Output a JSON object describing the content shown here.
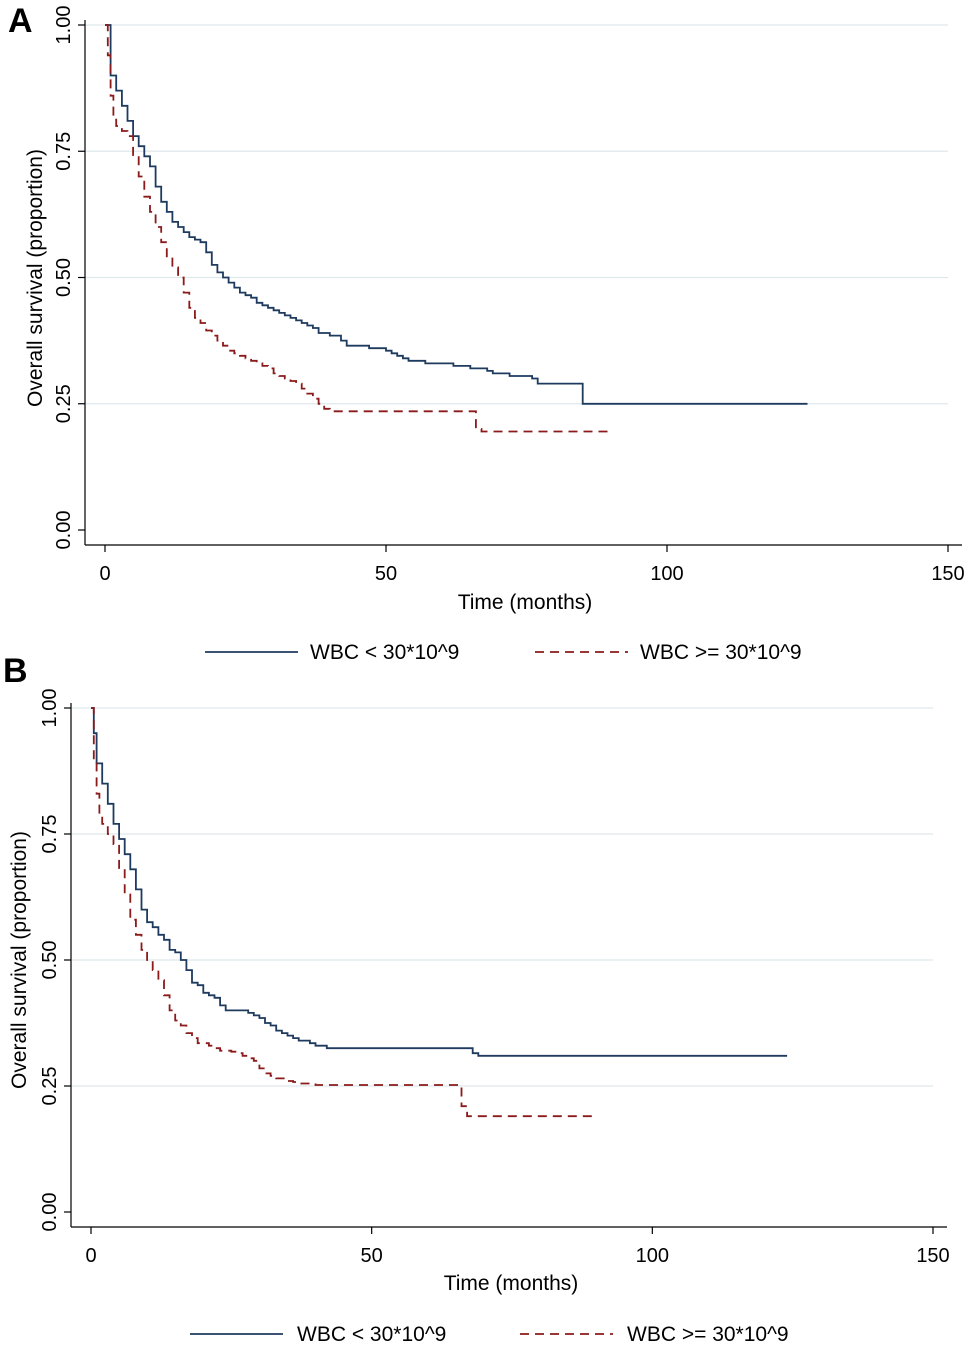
{
  "chart_data": [
    {
      "panel": "A",
      "type": "line",
      "xlabel": "Time (months)",
      "ylabel": "Overall survival (proportion)",
      "xlim": [
        0,
        150
      ],
      "ylim": [
        0,
        1
      ],
      "xticks": [
        "0",
        "50",
        "100",
        "150"
      ],
      "yticks": [
        "0.00",
        "0.25",
        "0.50",
        "0.75",
        "1.00"
      ],
      "grid": "horizontal",
      "legend": "bottom",
      "series": [
        {
          "name": "WBC < 30*10^9",
          "color": "#1f3a5f",
          "style": "solid",
          "x": [
            0,
            1,
            2,
            3,
            4,
            5,
            6,
            7,
            8,
            9,
            10,
            11,
            12,
            13,
            14,
            15,
            16,
            17,
            18,
            19,
            20,
            21,
            22,
            23,
            24,
            25,
            26,
            27,
            28,
            29,
            30,
            31,
            32,
            33,
            34,
            35,
            36,
            37,
            38,
            40,
            42,
            43,
            47,
            48,
            50,
            51,
            52,
            53,
            54,
            57,
            60,
            62,
            65,
            68,
            69,
            72,
            76,
            77,
            80,
            84,
            85,
            125
          ],
          "y": [
            1.0,
            0.9,
            0.87,
            0.84,
            0.81,
            0.78,
            0.76,
            0.74,
            0.72,
            0.68,
            0.65,
            0.63,
            0.61,
            0.6,
            0.59,
            0.58,
            0.575,
            0.57,
            0.55,
            0.525,
            0.51,
            0.5,
            0.49,
            0.48,
            0.47,
            0.465,
            0.46,
            0.45,
            0.445,
            0.44,
            0.435,
            0.43,
            0.425,
            0.42,
            0.415,
            0.41,
            0.405,
            0.4,
            0.39,
            0.385,
            0.375,
            0.365,
            0.36,
            0.36,
            0.355,
            0.35,
            0.345,
            0.34,
            0.335,
            0.33,
            0.33,
            0.325,
            0.32,
            0.315,
            0.31,
            0.305,
            0.3,
            0.29,
            0.29,
            0.29,
            0.25,
            0.25
          ]
        },
        {
          "name": "WBC >= 30*10^9",
          "color": "#8b1a1a",
          "style": "dashed",
          "x": [
            0,
            0.5,
            1,
            1.5,
            2,
            3,
            4,
            5,
            6,
            7,
            8,
            9,
            10,
            11,
            12,
            13,
            14,
            15,
            16,
            17,
            18,
            19,
            20,
            21,
            22,
            23,
            24,
            25,
            26,
            27,
            28,
            29,
            30,
            31,
            32,
            33,
            34,
            35,
            36,
            37,
            38,
            39,
            40,
            65,
            66,
            67,
            90
          ],
          "y": [
            1.0,
            0.94,
            0.86,
            0.82,
            0.8,
            0.79,
            0.78,
            0.74,
            0.7,
            0.66,
            0.63,
            0.6,
            0.57,
            0.54,
            0.52,
            0.5,
            0.47,
            0.44,
            0.42,
            0.41,
            0.395,
            0.385,
            0.375,
            0.365,
            0.355,
            0.35,
            0.345,
            0.34,
            0.335,
            0.33,
            0.325,
            0.32,
            0.31,
            0.305,
            0.3,
            0.295,
            0.29,
            0.28,
            0.27,
            0.26,
            0.25,
            0.24,
            0.235,
            0.235,
            0.2,
            0.195,
            0.195
          ]
        }
      ]
    },
    {
      "panel": "B",
      "type": "line",
      "xlabel": "Time (months)",
      "ylabel": "Overall survival (proportion)",
      "xlim": [
        0,
        150
      ],
      "ylim": [
        0,
        1
      ],
      "xticks": [
        "0",
        "50",
        "100",
        "150"
      ],
      "yticks": [
        "0.00",
        "0.25",
        "0.50",
        "0.75",
        "1.00"
      ],
      "grid": "horizontal",
      "legend": "bottom",
      "series": [
        {
          "name": "WBC < 30*10^9",
          "color": "#1f3a5f",
          "style": "solid",
          "x": [
            0,
            0.5,
            1,
            2,
            3,
            4,
            5,
            6,
            7,
            8,
            9,
            10,
            11,
            12,
            13,
            14,
            15,
            16,
            17,
            18,
            19,
            20,
            21,
            22,
            23,
            24,
            26,
            28,
            29,
            30,
            31,
            32,
            33,
            34,
            35,
            36,
            37,
            38,
            39,
            40,
            42,
            45,
            50,
            55,
            60,
            67,
            68,
            69,
            124
          ],
          "y": [
            1.0,
            0.95,
            0.89,
            0.85,
            0.81,
            0.77,
            0.74,
            0.71,
            0.68,
            0.64,
            0.6,
            0.575,
            0.565,
            0.55,
            0.54,
            0.52,
            0.515,
            0.5,
            0.48,
            0.455,
            0.45,
            0.435,
            0.43,
            0.425,
            0.41,
            0.4,
            0.4,
            0.395,
            0.39,
            0.385,
            0.375,
            0.37,
            0.36,
            0.355,
            0.35,
            0.345,
            0.34,
            0.34,
            0.335,
            0.33,
            0.325,
            0.325,
            0.325,
            0.325,
            0.325,
            0.325,
            0.315,
            0.31,
            0.31
          ]
        },
        {
          "name": "WBC >= 30*10^9",
          "color": "#8b1a1a",
          "style": "dashed",
          "x": [
            0,
            0.5,
            1,
            1.5,
            2,
            3,
            4,
            5,
            6,
            7,
            8,
            9,
            10,
            11,
            12,
            13,
            14,
            15,
            16,
            17,
            18,
            19,
            20,
            21,
            22,
            23,
            24,
            25,
            26,
            27,
            28,
            29,
            30,
            31,
            32,
            33,
            34,
            35,
            36,
            37,
            40,
            45,
            50,
            55,
            60,
            65,
            66,
            67,
            90
          ],
          "y": [
            1.0,
            0.9,
            0.83,
            0.79,
            0.77,
            0.75,
            0.73,
            0.68,
            0.63,
            0.58,
            0.55,
            0.52,
            0.5,
            0.48,
            0.46,
            0.43,
            0.4,
            0.38,
            0.37,
            0.355,
            0.345,
            0.335,
            0.335,
            0.33,
            0.325,
            0.32,
            0.32,
            0.318,
            0.315,
            0.31,
            0.305,
            0.3,
            0.285,
            0.275,
            0.27,
            0.265,
            0.265,
            0.26,
            0.258,
            0.255,
            0.252,
            0.252,
            0.252,
            0.252,
            0.252,
            0.252,
            0.21,
            0.19,
            0.19
          ]
        }
      ]
    }
  ]
}
